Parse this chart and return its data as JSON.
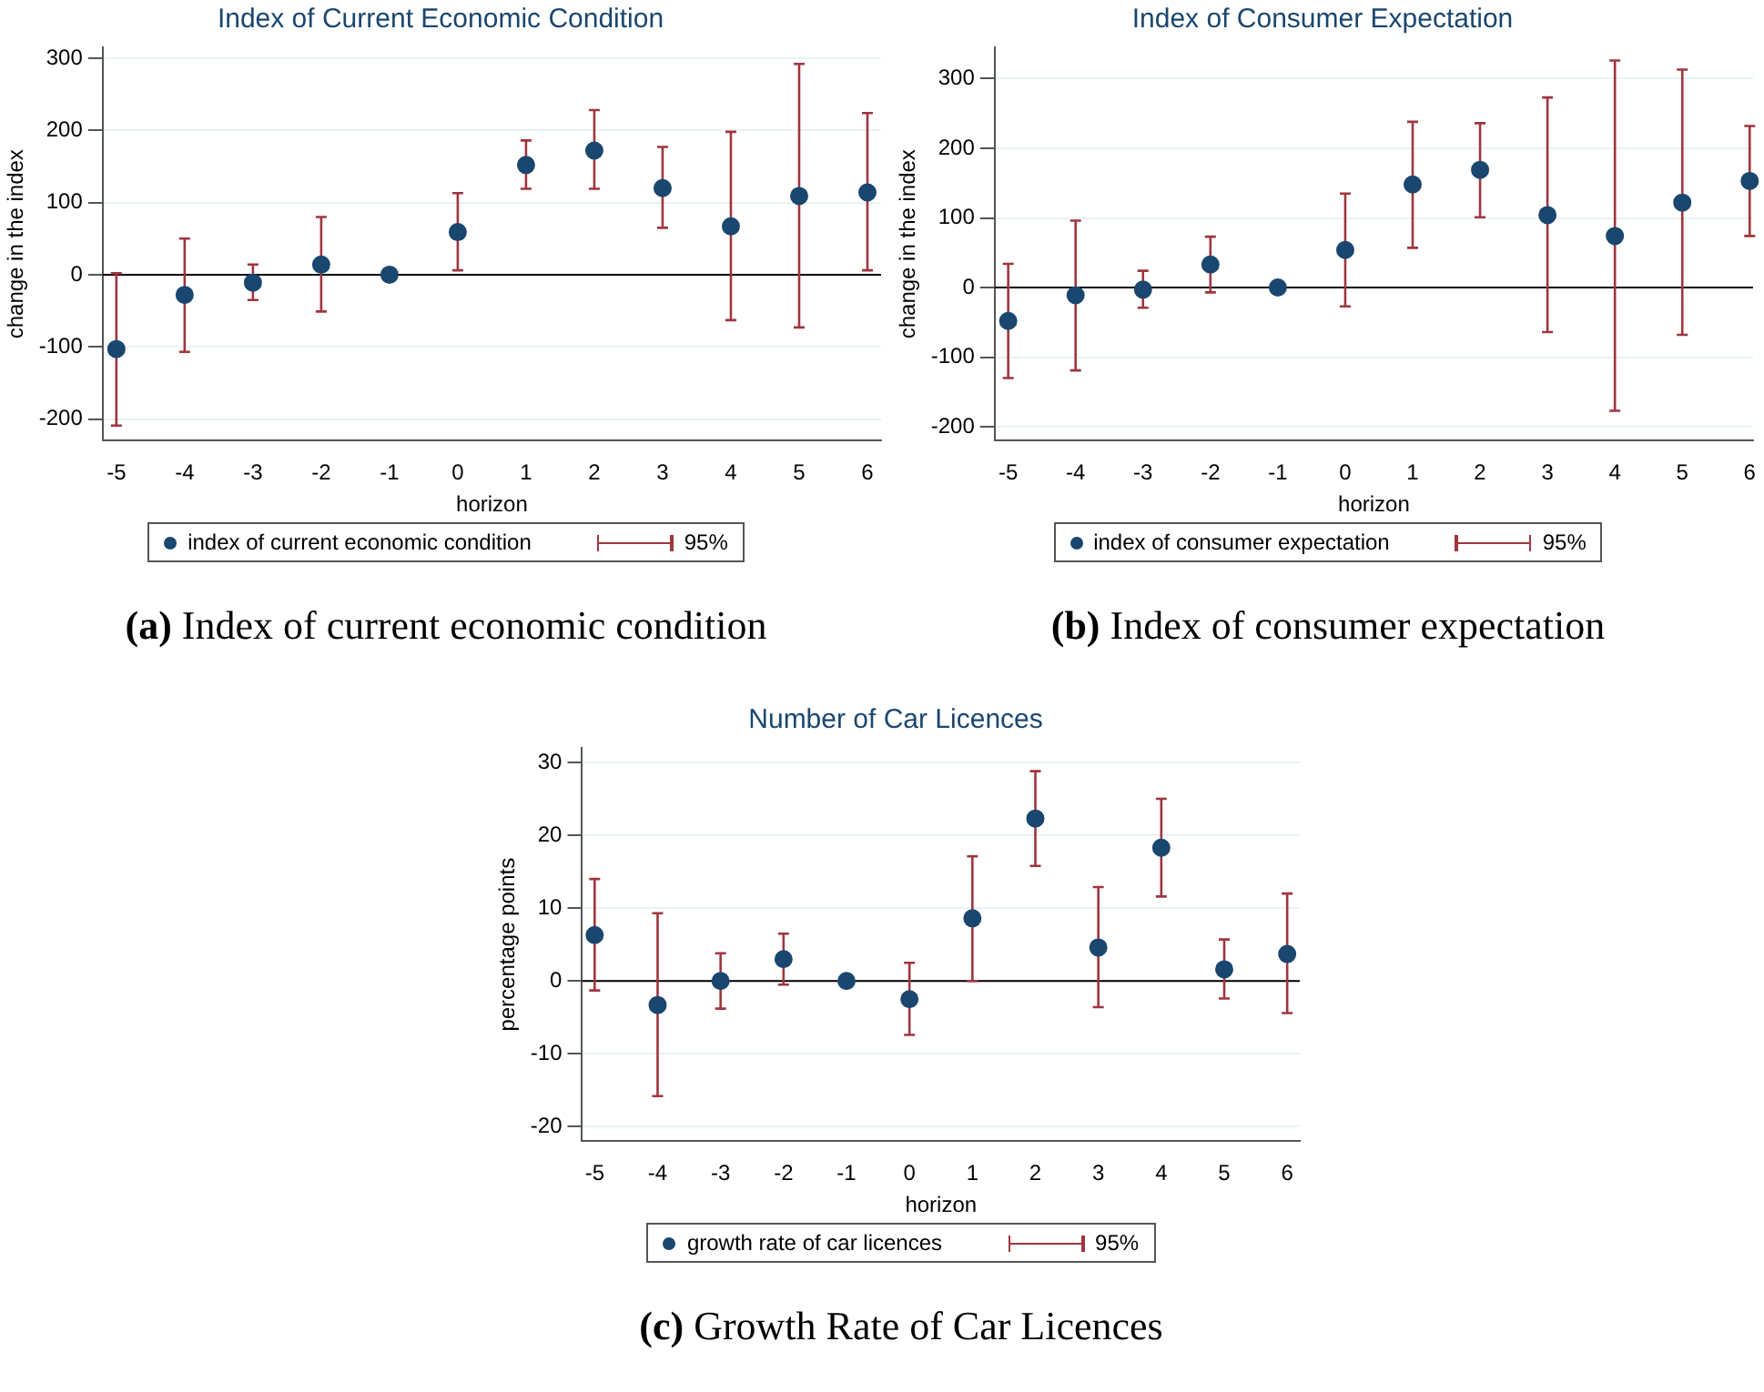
{
  "chart_data": [
    {
      "type": "scatter",
      "title": "Index of Current Economic Condition",
      "xlabel": "horizon",
      "ylabel": "change in the index",
      "x": [
        -5,
        -4,
        -3,
        -2,
        -1,
        0,
        1,
        2,
        3,
        4,
        5,
        6
      ],
      "series": [
        {
          "name": "index of current economic condition",
          "color": "#1a476f",
          "values": [
            -103,
            -28,
            -11,
            14,
            0,
            59,
            152,
            172,
            120,
            67,
            109,
            114
          ],
          "errors": [
            [
              -209,
              2
            ],
            [
              -107,
              50
            ],
            [
              -35,
              14
            ],
            [
              -51,
              80
            ],
            null,
            [
              6,
              113
            ],
            [
              119,
              186
            ],
            [
              119,
              228
            ],
            [
              65,
              177
            ],
            [
              -63,
              198
            ],
            [
              -73,
              292
            ],
            [
              6,
              224
            ]
          ]
        }
      ],
      "xlim": [
        -5.2,
        6.2
      ],
      "xticks": [
        -5,
        -4,
        -3,
        -2,
        -1,
        0,
        1,
        2,
        3,
        4,
        5,
        6
      ],
      "ylim": [
        -230,
        315
      ],
      "yticks": [
        -200,
        -100,
        0,
        100,
        200,
        300
      ],
      "ref_lines": [
        {
          "axis": "y",
          "value": 0,
          "color": "#000000"
        }
      ],
      "grid": "y",
      "legend": "bottom",
      "marker": "circle",
      "annotations": [
        "95%",
        "(a) Index of current economic condition"
      ]
    },
    {
      "type": "scatter",
      "title": "Index of Consumer Expectation",
      "xlabel": "horizon",
      "ylabel": "change in the index",
      "x": [
        -5,
        -4,
        -3,
        -2,
        -1,
        0,
        1,
        2,
        3,
        4,
        5,
        6
      ],
      "series": [
        {
          "name": "index of consumer expectation",
          "color": "#1a476f",
          "values": [
            -48,
            -11,
            -3,
            33,
            0,
            54,
            148,
            169,
            104,
            74,
            122,
            153
          ],
          "errors": [
            [
              -130,
              34
            ],
            [
              -119,
              96
            ],
            [
              -29,
              24
            ],
            [
              -7,
              73
            ],
            null,
            [
              -27,
              135
            ],
            [
              57,
              238
            ],
            [
              101,
              236
            ],
            [
              -64,
              273
            ],
            [
              -177,
              326
            ],
            [
              -68,
              313
            ],
            [
              74,
              232
            ]
          ]
        }
      ],
      "xlim": [
        -5.2,
        6.05
      ],
      "xticks": [
        -5,
        -4,
        -3,
        -2,
        -1,
        0,
        1,
        2,
        3,
        4,
        5,
        6
      ],
      "ylim": [
        -220,
        345
      ],
      "yticks": [
        -200,
        -100,
        0,
        100,
        200,
        300
      ],
      "ref_lines": [
        {
          "axis": "y",
          "value": 0,
          "color": "#000000"
        }
      ],
      "grid": "y",
      "legend": "bottom",
      "marker": "circle",
      "annotations": [
        "95%",
        "(b) Index of consumer expectation"
      ]
    },
    {
      "type": "scatter",
      "title": "Number of Car Licences",
      "xlabel": "horizon",
      "ylabel": "percentage points",
      "x": [
        -5,
        -4,
        -3,
        -2,
        -1,
        0,
        1,
        2,
        3,
        4,
        5,
        6
      ],
      "series": [
        {
          "name": "growth rate of car licences",
          "color": "#1a476f",
          "values": [
            6.3,
            -3.3,
            0,
            3.0,
            0,
            -2.5,
            8.6,
            22.3,
            4.6,
            18.3,
            1.6,
            3.7
          ],
          "errors": [
            [
              -1.3,
              14
            ],
            [
              -15.8,
              9.3
            ],
            [
              -3.8,
              3.8
            ],
            [
              -0.5,
              6.5
            ],
            null,
            [
              -7.4,
              2.5
            ],
            [
              0,
              17.1
            ],
            [
              15.8,
              28.8
            ],
            [
              -3.6,
              12.9
            ],
            [
              11.6,
              25
            ],
            [
              -2.4,
              5.7
            ],
            [
              -4.4,
              12
            ]
          ]
        }
      ],
      "xlim": [
        -5.2,
        6.2
      ],
      "xticks": [
        -5,
        -4,
        -3,
        -2,
        -1,
        0,
        1,
        2,
        3,
        4,
        5,
        6
      ],
      "ylim": [
        -22,
        32
      ],
      "yticks": [
        -20,
        -10,
        0,
        10,
        20,
        30
      ],
      "ref_lines": [
        {
          "axis": "y",
          "value": 0,
          "color": "#000000"
        }
      ],
      "grid": "y",
      "legend": "bottom",
      "marker": "circle",
      "annotations": [
        "95%",
        "(c) Growth Rate of Car Licences"
      ]
    }
  ]
}
